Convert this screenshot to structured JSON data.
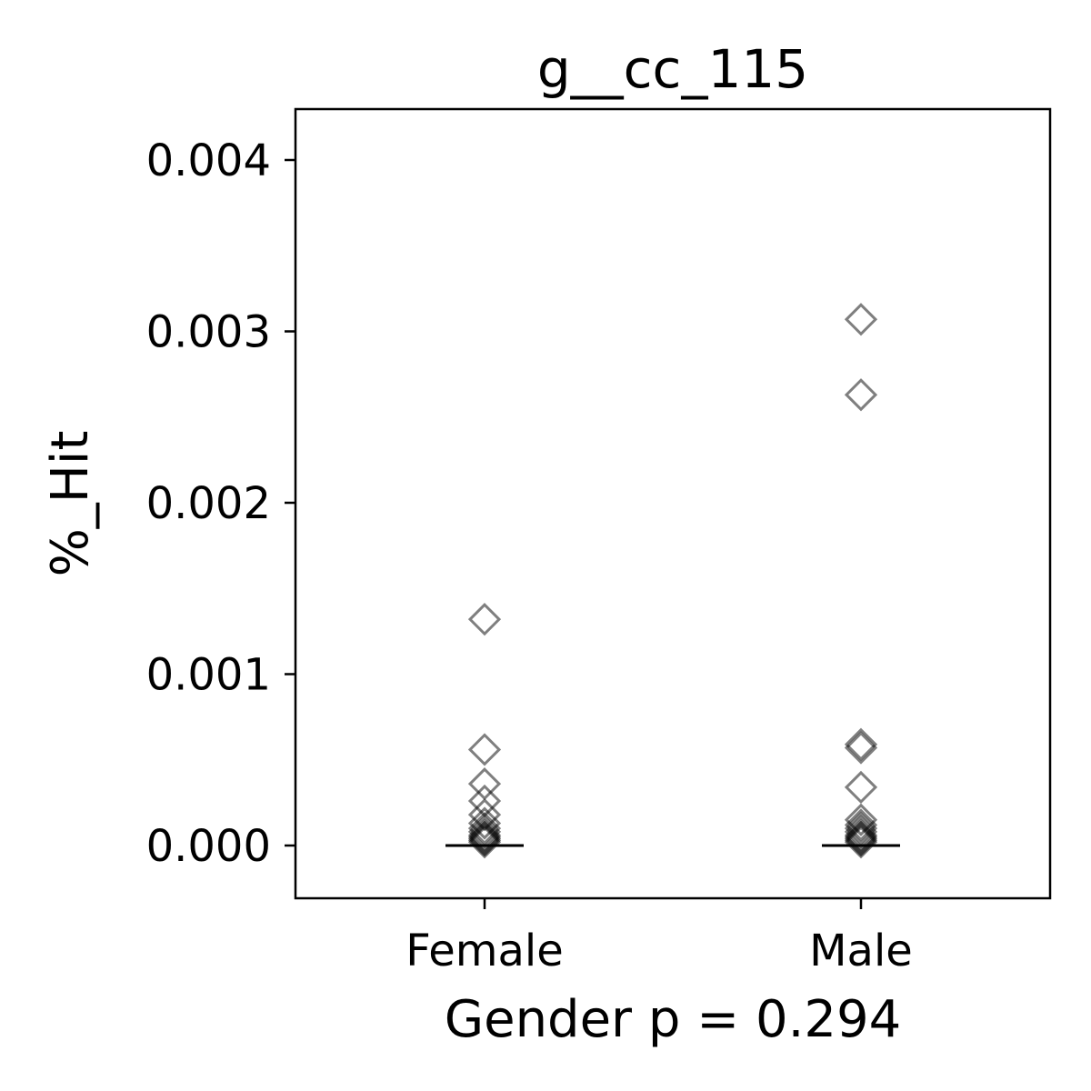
{
  "chart_data": {
    "type": "scatter",
    "title": "g__cc_115",
    "xlabel": "Gender p = 0.294",
    "ylabel": "%_Hit",
    "categories": [
      "Female",
      "Male"
    ],
    "ylim": [
      -0.0003,
      0.0043
    ],
    "yticks": [
      0.0,
      0.001,
      0.002,
      0.003,
      0.004
    ],
    "ytick_labels": [
      "0.000",
      "0.001",
      "0.002",
      "0.003",
      "0.004"
    ],
    "marker": "open-diamond",
    "marker_color": "#000000",
    "grid": false,
    "series": [
      {
        "category": "Female",
        "values": [
          0.00132,
          0.00056,
          0.00036,
          0.00026,
          0.00018,
          0.00013,
          0.0001,
          8e-05,
          6e-05,
          5e-05,
          4e-05,
          3e-05,
          2e-05
        ],
        "median": 0.0
      },
      {
        "category": "Male",
        "values": [
          0.00307,
          0.00263,
          0.00059,
          0.00057,
          0.00034,
          0.00015,
          0.00012,
          0.0001,
          8e-05,
          6e-05,
          5e-05,
          4e-05,
          3e-05,
          2e-05
        ],
        "median": 0.0
      }
    ]
  }
}
